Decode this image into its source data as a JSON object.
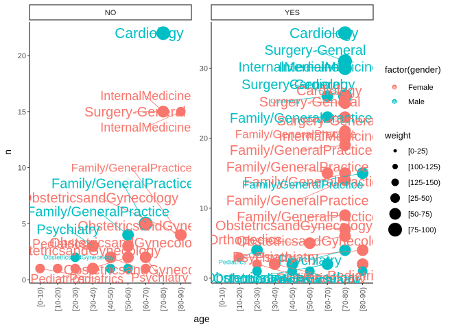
{
  "chart_data": {
    "type": "scatter",
    "xlabel": "age",
    "ylabel": "n",
    "categories": [
      "[0-10)",
      "[10-20)",
      "[20-30)",
      "[30-40)",
      "[40-50)",
      "[50-60)",
      "[60-70)",
      "[70-80)",
      "[80-90)"
    ],
    "colors": {
      "Female": "#F8766D",
      "Male": "#00BFC4"
    },
    "legend": {
      "placement": "right",
      "color_title": "factor(gender)",
      "color_keys": [
        "Female",
        "Male"
      ],
      "size_title": "weight",
      "size_keys": [
        "[0-25)",
        "[100-125)",
        "[125-150)",
        "[25-50)",
        "[50-75)",
        "[75-100)"
      ],
      "size_radii": [
        2.5,
        4,
        5.5,
        7,
        8.5,
        10
      ]
    },
    "panels": [
      {
        "strip": "NO",
        "ylim": [
          -0.3,
          23.0
        ],
        "yticks": [
          0,
          5,
          10,
          15,
          20
        ],
        "points": [
          {
            "age": "[70-80)",
            "n": 22,
            "gender": "Male",
            "weight": "[75-100)",
            "label": "Cardiology",
            "label_age": 6.2,
            "label_n": 22,
            "label_size": 21
          },
          {
            "age": "[70-80)",
            "n": 15,
            "gender": "Female",
            "weight": "[50-75)",
            "label": "InternalMedicine",
            "label_age": 6.0,
            "label_n": 16.4,
            "label_size": 18
          },
          {
            "age": "[80-90)",
            "n": 15,
            "gender": "Female",
            "weight": "[25-50)",
            "label": "InternalMedicine",
            "label_age": 6.0,
            "label_n": 13.6,
            "label_size": 18
          },
          {
            "age": "[70-80)",
            "n": 15,
            "gender": "Female",
            "weight": "[50-75)",
            "label": "Surgery-General",
            "label_age": 5.4,
            "label_n": 15,
            "label_size": 20
          },
          {
            "age": "[80-90)",
            "n": 4,
            "gender": "Female",
            "weight": "[50-75)",
            "label": "Family/GeneralPractice",
            "label_age": 5.2,
            "label_n": 10.0,
            "label_size": 17
          },
          {
            "age": "[60-70)",
            "n": 5,
            "gender": "Male",
            "weight": "[75-100)",
            "label": "Family/GeneralPractice",
            "label_age": 4.7,
            "label_n": 8.6,
            "label_size": 20
          },
          {
            "age": "[80-90)",
            "n": 4,
            "gender": "Female",
            "weight": "[50-75)",
            "label": "ObstetricsandGynecology",
            "label_age": 3.4,
            "label_n": 7.3,
            "label_size": 20
          },
          {
            "age": "[50-60)",
            "n": 4,
            "gender": "Male",
            "weight": "[50-75)",
            "label": "Family/GeneralPractice",
            "label_age": 3.3,
            "label_n": 6.1,
            "label_size": 20
          },
          {
            "age": "[60-70)",
            "n": 5,
            "gender": "Female",
            "weight": "[50-75)",
            "label": "ObstetricsandGynecology",
            "label_age": 6.6,
            "label_n": 4.8,
            "label_size": 20
          },
          {
            "age": "[30-40)",
            "n": 3,
            "gender": "Male",
            "weight": "[50-75)",
            "label": "Psychiatry",
            "label_age": 1.6,
            "label_n": 4.5,
            "label_size": 20
          },
          {
            "age": "[30-40)",
            "n": 3,
            "gender": "Female",
            "weight": "[50-75)",
            "label": "Pediatrics",
            "label_age": 1.1,
            "label_n": 3.2,
            "label_size": 18
          },
          {
            "age": "[50-60)",
            "n": 3,
            "gender": "Female",
            "weight": "[50-75)",
            "label": "ObstetricsandGynecology",
            "label_age": 5.0,
            "label_n": 3.3,
            "label_size": 20
          },
          {
            "age": "[30-40)",
            "n": 3,
            "gender": "Female",
            "weight": "[50-75)",
            "label": "ObstetricsandGynecology",
            "label_age": 2.4,
            "label_n": 2.6,
            "label_size": 20
          },
          {
            "age": "[20-30)",
            "n": 2,
            "gender": "Male",
            "weight": "[25-50)",
            "label": "ObstetricsandGynecology",
            "label_age": 2.2,
            "label_n": 2.0,
            "label_size": 9
          },
          {
            "age": "[40-50)",
            "n": 2,
            "gender": "Female",
            "weight": "[50-75)",
            "label": "ObstetricsandGynecology",
            "label_age": 5.8,
            "label_n": 0.9,
            "label_size": 20
          },
          {
            "age": "[50-60)",
            "n": 2,
            "gender": "Female",
            "weight": "[50-75)",
            "label": "Pediatrics",
            "label_age": 1.0,
            "label_n": 0.1,
            "label_size": 18
          },
          {
            "age": "[60-70)",
            "n": 2,
            "gender": "Female",
            "weight": "[50-75)",
            "label": "Psychiatry",
            "label_age": 6.8,
            "label_n": 0.2,
            "label_size": 18
          },
          {
            "age": "[0-10)",
            "n": 1,
            "gender": "Female",
            "weight": "[25-50)",
            "label": "Pediatrics",
            "label_age": 3.2,
            "label_n": 0.1,
            "label_size": 18
          },
          {
            "age": "[10-20)",
            "n": 1,
            "gender": "Female",
            "weight": "[25-50)",
            "label": "",
            "label_age": 0,
            "label_n": 0,
            "label_size": 0
          },
          {
            "age": "[20-30)",
            "n": 1,
            "gender": "Female",
            "weight": "[25-50)",
            "label": "",
            "label_age": 0,
            "label_n": 0,
            "label_size": 0
          },
          {
            "age": "[30-40)",
            "n": 1,
            "gender": "Female",
            "weight": "[50-75)",
            "label": "",
            "label_age": 0,
            "label_n": 0,
            "label_size": 0
          },
          {
            "age": "[40-50)",
            "n": 1,
            "gender": "Male",
            "weight": "[25-50)",
            "label": "",
            "label_age": 0,
            "label_n": 0,
            "label_size": 0
          },
          {
            "age": "[50-60)",
            "n": 1,
            "gender": "Male",
            "weight": "[25-50)",
            "label": "",
            "label_age": 0,
            "label_n": 0,
            "label_size": 0
          },
          {
            "age": "[60-70)",
            "n": 1,
            "gender": "Female",
            "weight": "[25-50)",
            "label": "",
            "label_age": 0,
            "label_n": 0,
            "label_size": 0
          }
        ]
      },
      {
        "strip": "YES",
        "ylim": [
          -0.7,
          36.6
        ],
        "yticks": [
          0,
          10,
          20,
          30
        ],
        "points": [
          {
            "age": "[70-80)",
            "n": 35,
            "gender": "Male",
            "weight": "[75-100)",
            "label": "Cardiology",
            "label_age": 5.8,
            "label_n": 35,
            "label_size": 21
          },
          {
            "age": "[70-80)",
            "n": 31,
            "gender": "Male",
            "weight": "[75-100)",
            "label": "Surgery-General",
            "label_age": 5.3,
            "label_n": 32.6,
            "label_size": 20
          },
          {
            "age": "[70-80)",
            "n": 31,
            "gender": "Male",
            "weight": "[75-100)",
            "label": "InternalMedicine",
            "label_age": 6.1,
            "label_n": 30.2,
            "label_size": 20
          },
          {
            "age": "[70-80)",
            "n": 30,
            "gender": "Male",
            "weight": "[75-100)",
            "label": "InternalMedicine",
            "label_age": 3.8,
            "label_n": 30.2,
            "label_size": 20
          },
          {
            "age": "[70-80)",
            "n": 26,
            "gender": "Male",
            "weight": "[75-100)",
            "label": "Surgery-General",
            "label_age": 4.0,
            "label_n": 27.7,
            "label_size": 20
          },
          {
            "age": "[70-80)",
            "n": 26,
            "gender": "Male",
            "weight": "[75-100)",
            "label": "Cardiology",
            "label_age": 5.7,
            "label_n": 27.7,
            "label_size": 20
          },
          {
            "age": "[70-80)",
            "n": 26,
            "gender": "Female",
            "weight": "[50-75)",
            "label": "Cardiology",
            "label_age": 6.1,
            "label_n": 26.8,
            "label_size": 20
          },
          {
            "age": "[60-70)",
            "n": 26,
            "gender": "Male",
            "weight": "[50-75)",
            "label": "Cardiology",
            "label_age": 3.6,
            "label_n": 25.3,
            "label_size": 9
          },
          {
            "age": "[70-80)",
            "n": 25,
            "gender": "Female",
            "weight": "[50-75)",
            "label": "Surgery-General",
            "label_age": 5.0,
            "label_n": 25.2,
            "label_size": 20
          },
          {
            "age": "[60-70)",
            "n": 23,
            "gender": "Male",
            "weight": "[50-75)",
            "label": "Family/GeneralPractice",
            "label_age": 4.5,
            "label_n": 22.9,
            "label_size": 20
          },
          {
            "age": "[70-80)",
            "n": 23,
            "gender": "Female",
            "weight": "[50-75)",
            "label": "Surgery-General",
            "label_age": 6.0,
            "label_n": 22.5,
            "label_size": 20
          },
          {
            "age": "[70-80)",
            "n": 21,
            "gender": "Female",
            "weight": "[50-75)",
            "label": "Family/GeneralPractice",
            "label_age": 4.2,
            "label_n": 20.6,
            "label_size": 17
          },
          {
            "age": "[70-80)",
            "n": 20,
            "gender": "Female",
            "weight": "[50-75)",
            "label": "InternalMedicine",
            "label_age": 6.1,
            "label_n": 20.3,
            "label_size": 20
          },
          {
            "age": "[70-80)",
            "n": 19,
            "gender": "Female",
            "weight": "[50-75)",
            "label": "Family/GeneralPractice",
            "label_age": 4.5,
            "label_n": 18.3,
            "label_size": 20
          },
          {
            "age": "[60-70)",
            "n": 15,
            "gender": "Female",
            "weight": "[50-75)",
            "label": "Family/GeneralPractice",
            "label_age": 4.3,
            "label_n": 15.9,
            "label_size": 20
          },
          {
            "age": "[70-80)",
            "n": 15,
            "gender": "Female",
            "weight": "[50-75)",
            "label": "Family/GeneralPractice",
            "label_age": 5.3,
            "label_n": 13.8,
            "label_size": 20
          },
          {
            "age": "[80-90)",
            "n": 15,
            "gender": "Male",
            "weight": "[50-75)",
            "label": "Family/GeneralPractice",
            "label_age": 4.6,
            "label_n": 13.4,
            "label_size": 17
          },
          {
            "age": "[70-80)",
            "n": 14,
            "gender": "Female",
            "weight": "[50-75)",
            "label": "Family/GeneralPractice",
            "label_age": 4.3,
            "label_n": 11.1,
            "label_size": 20
          },
          {
            "age": "[70-80)",
            "n": 9,
            "gender": "Female",
            "weight": "[50-75)",
            "label": "Family/GeneralPractice",
            "label_age": 4.9,
            "label_n": 8.8,
            "label_size": 20
          },
          {
            "age": "[70-80)",
            "n": 7,
            "gender": "Female",
            "weight": "[50-75)",
            "label": "ObstetricsandGynecology",
            "label_age": 4.1,
            "label_n": 7.5,
            "label_size": 20
          },
          {
            "age": "[70-80)",
            "n": 6,
            "gender": "Female",
            "weight": "[50-75)",
            "label": "ObstetricsandGynecology",
            "label_age": 5.3,
            "label_n": 5.3,
            "label_size": 20
          },
          {
            "age": "[50-60)",
            "n": 5,
            "gender": "Female",
            "weight": "[50-75)",
            "label": "Orthopedics",
            "label_age": 1.3,
            "label_n": 5.5,
            "label_size": 20
          },
          {
            "age": "[80-90)",
            "n": 4,
            "gender": "Female",
            "weight": "[50-75)",
            "label": "Psychiatry",
            "label_age": 3.7,
            "label_n": 3.0,
            "label_size": 20
          },
          {
            "age": "[70-80)",
            "n": 4,
            "gender": "Male",
            "weight": "[50-75)",
            "label": "Psychiatry",
            "label_age": 5.0,
            "label_n": 2.6,
            "label_size": 20
          },
          {
            "age": "[20-30)",
            "n": 4,
            "gender": "Male",
            "weight": "[50-75)",
            "label": "Pediatrics",
            "label_age": 0.6,
            "label_n": 2.3,
            "label_size": 9
          },
          {
            "age": "[10-20)",
            "n": 3,
            "gender": "Female",
            "weight": "[25-50)",
            "label": "Psychiatry",
            "label_age": 2.4,
            "label_n": 3.0,
            "label_size": 20
          },
          {
            "age": "[80-90)",
            "n": 2,
            "gender": "Female",
            "weight": "[50-75)",
            "label": "Pediatrics",
            "label_age": 7.7,
            "label_n": 0.4,
            "label_size": 20
          },
          {
            "age": "[40-50)",
            "n": 2,
            "gender": "Male",
            "weight": "[50-75)",
            "label": "ObstetricsandGynecology",
            "label_age": 3.5,
            "label_n": 0.1,
            "label_size": 20
          },
          {
            "age": "[60-70)",
            "n": 2,
            "gender": "Male",
            "weight": "[50-75)",
            "label": "Orthopedics",
            "label_age": 1.6,
            "label_n": 0.0,
            "label_size": 20
          },
          {
            "age": "[20-30)",
            "n": 2,
            "gender": "Female",
            "weight": "[25-50)",
            "label": "Pediatrics",
            "label_age": 4.8,
            "label_n": 0.0,
            "label_size": 20
          },
          {
            "age": "[30-40)",
            "n": 2,
            "gender": "Female",
            "weight": "[50-75)",
            "label": "Psychiatry",
            "label_age": 6.4,
            "label_n": 0.0,
            "label_size": 20
          },
          {
            "age": "[20-30)",
            "n": 1,
            "gender": "Male",
            "weight": "[25-50)",
            "label": "Orthopedics",
            "label_age": 2.5,
            "label_n": -0.2,
            "label_size": 20
          },
          {
            "age": "[40-50)",
            "n": 1,
            "gender": "Male",
            "weight": "[25-50)",
            "label": "Pediatrics",
            "label_age": 4.5,
            "label_n": -0.2,
            "label_size": 20
          },
          {
            "age": "[50-60)",
            "n": 1,
            "gender": "Male",
            "weight": "[25-50)",
            "label": "Psychiatry",
            "label_age": 6.0,
            "label_n": -0.2,
            "label_size": 20
          },
          {
            "age": "[80-90)",
            "n": 1,
            "gender": "Male",
            "weight": "[25-50)",
            "label": "",
            "label_age": 0,
            "label_n": 0,
            "label_size": 0
          }
        ]
      }
    ]
  }
}
